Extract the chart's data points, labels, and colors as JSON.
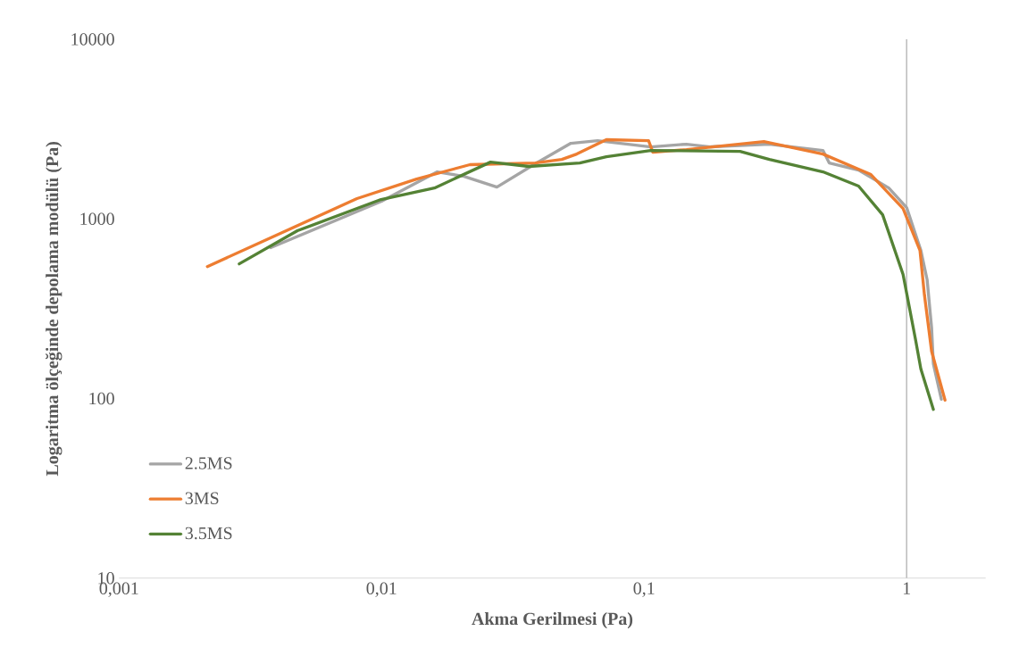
{
  "chart_data": {
    "type": "line",
    "xlabel": "Akma Gerilmesi (Pa)",
    "ylabel": "Logaritma ölçeğinde depolama modülü (Pa)",
    "log": "xy",
    "xlim": [
      0.001,
      2
    ],
    "ylim": [
      10,
      10000
    ],
    "xticks": [
      {
        "value": 0.001,
        "label": "0,001"
      },
      {
        "value": 0.01,
        "label": "0,01"
      },
      {
        "value": 0.1,
        "label": "0,1"
      },
      {
        "value": 1,
        "label": "1"
      }
    ],
    "yticks": [
      10,
      100,
      1000,
      10000
    ],
    "grid": false,
    "legend": "bottom left",
    "marker": "none",
    "line_style": "solid",
    "ref_lines": [
      {
        "axis": "x",
        "value": 1,
        "color": "#bfbfbf"
      }
    ],
    "series": [
      {
        "name": "2.5MS",
        "color": "#a5a5a5",
        "x": [
          0.00378,
          0.01,
          0.0163,
          0.0206,
          0.0275,
          0.0385,
          0.0526,
          0.0665,
          0.106,
          0.145,
          0.179,
          0.3,
          0.48,
          0.507,
          0.656,
          0.855,
          1,
          1.133,
          1.197,
          1.245,
          1.264,
          1.356
        ],
        "values": [
          692,
          1253,
          1828,
          1726,
          1504,
          2027,
          2636,
          2727,
          2518,
          2606,
          2518,
          2606,
          2405,
          2049,
          1870,
          1486,
          1156,
          668,
          458,
          247,
          156,
          99
        ]
      },
      {
        "name": "3MS",
        "color": "#ed7d31",
        "x": [
          0.00217,
          0.00806,
          0.0136,
          0.0217,
          0.0385,
          0.0486,
          0.0554,
          0.0718,
          0.104,
          0.108,
          0.145,
          0.286,
          0.48,
          0.731,
          0.969,
          1,
          1.124,
          1.169,
          1.245,
          1.4
        ],
        "values": [
          543,
          1297,
          1667,
          2004,
          2049,
          2145,
          2296,
          2760,
          2727,
          2350,
          2433,
          2697,
          2296,
          1766,
          1143,
          1019,
          668,
          377,
          183,
          98
        ]
      },
      {
        "name": "3.5MS",
        "color": "#548235",
        "x": [
          0.00287,
          0.00478,
          0.00995,
          0.0159,
          0.026,
          0.0364,
          0.0569,
          0.0718,
          0.106,
          0.232,
          0.3,
          0.48,
          0.656,
          0.81,
          0.969,
          1.081,
          1.133,
          1.264
        ],
        "values": [
          562,
          859,
          1282,
          1486,
          2071,
          1959,
          2049,
          2219,
          2405,
          2377,
          2145,
          1828,
          1522,
          1055,
          491,
          213,
          146,
          87
        ]
      }
    ]
  }
}
